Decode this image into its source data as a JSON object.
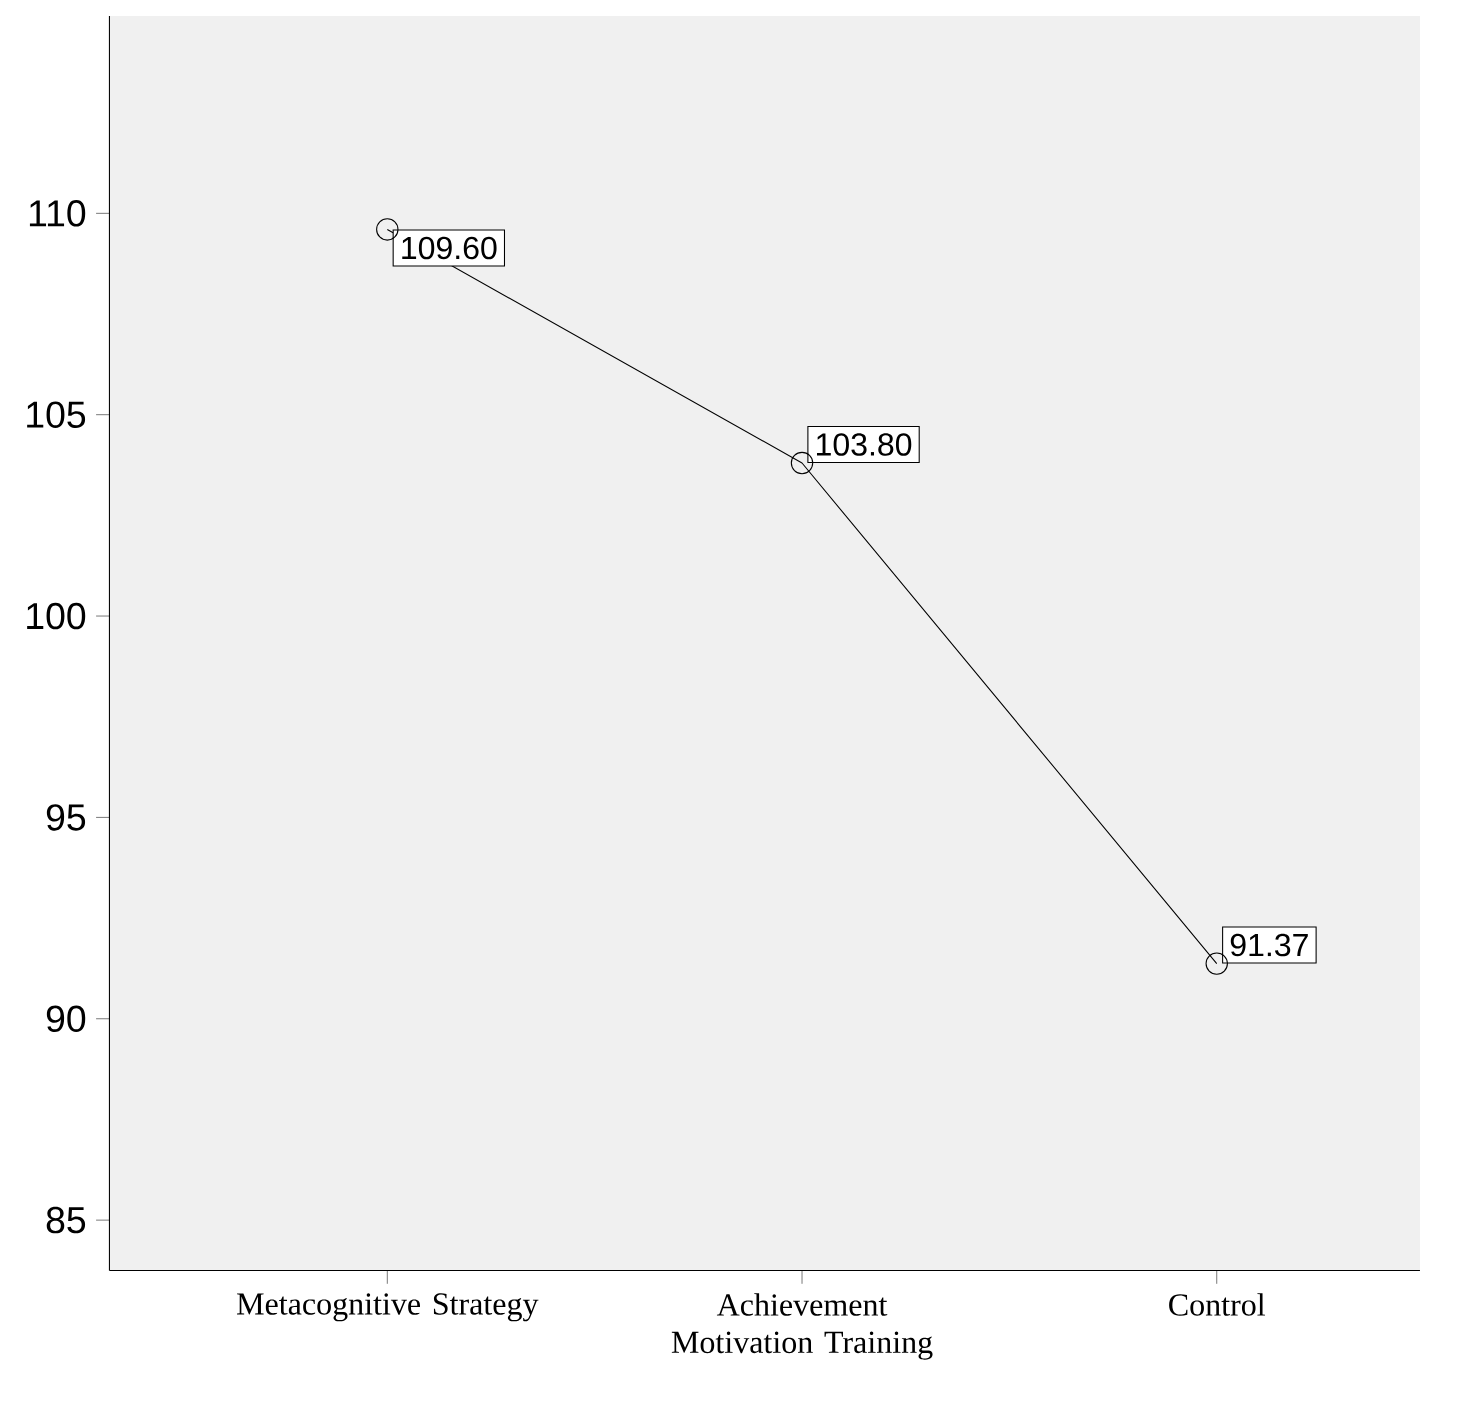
{
  "chart_data": {
    "type": "line",
    "categories": [
      "Metacognitive Strategy",
      "Achievement Motivation Training",
      "Control"
    ],
    "values": [
      109.6,
      103.8,
      91.37
    ],
    "value_labels": [
      "109.60",
      "103.80",
      "91.37"
    ],
    "color": "#000000",
    "marker": "circle",
    "ylim": [
      83.75,
      114.9
    ],
    "yticks": [
      85,
      90,
      95,
      100,
      105,
      110
    ]
  }
}
